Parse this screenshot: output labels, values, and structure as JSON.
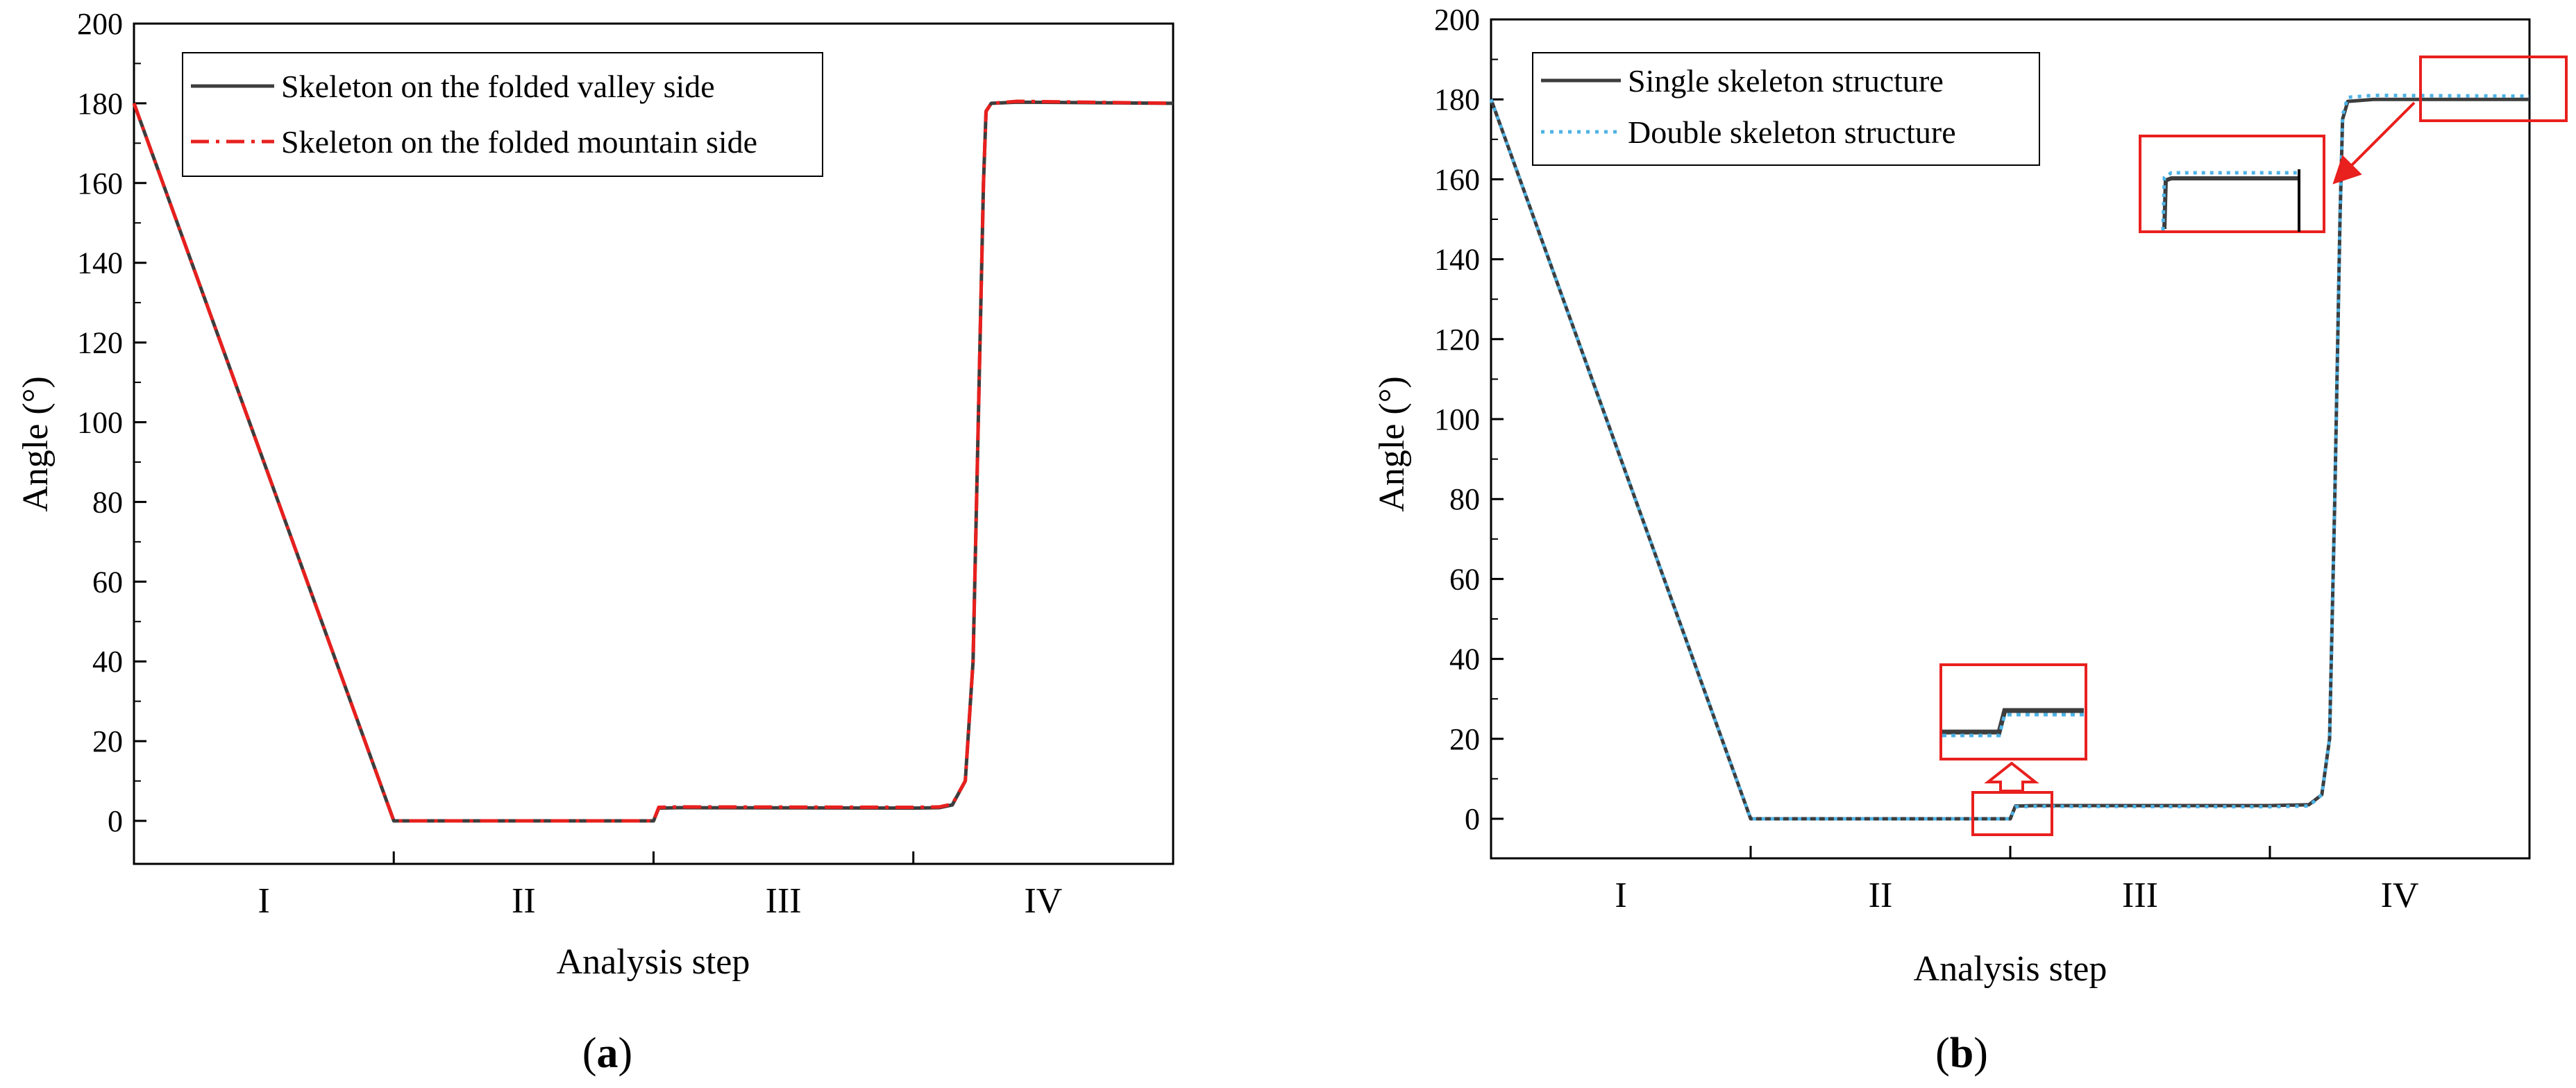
{
  "chart_data": [
    {
      "type": "line",
      "panel_label": "a",
      "xlabel": "Analysis step",
      "ylabel": "Angle (°)",
      "ylim": [
        -10,
        200
      ],
      "yticks": [
        0,
        20,
        40,
        60,
        80,
        100,
        120,
        140,
        160,
        180,
        200
      ],
      "xlim": [
        0,
        4
      ],
      "stage_boundaries": [
        1,
        2,
        3
      ],
      "stage_labels": [
        {
          "x": 0.5,
          "label": "I"
        },
        {
          "x": 1.5,
          "label": "II"
        },
        {
          "x": 2.5,
          "label": "III"
        },
        {
          "x": 3.5,
          "label": "IV"
        }
      ],
      "grid": false,
      "legend_position": "top-left",
      "series": [
        {
          "name": "Skeleton on the folded valley side",
          "color": "#3d3d3d",
          "style": "solid",
          "points": [
            [
              0,
              180
            ],
            [
              1,
              0
            ],
            [
              2,
              0
            ],
            [
              2.02,
              3.2
            ],
            [
              2.1,
              3.3
            ],
            [
              3,
              3.2
            ],
            [
              3.1,
              3.3
            ],
            [
              3.15,
              4
            ],
            [
              3.2,
              10
            ],
            [
              3.23,
              40
            ],
            [
              3.25,
              100
            ],
            [
              3.27,
              160
            ],
            [
              3.28,
              178
            ],
            [
              3.3,
              180
            ],
            [
              3.4,
              180.3
            ],
            [
              4,
              180
            ]
          ]
        },
        {
          "name": "Skeleton on the folded mountain side",
          "color": "#e8201e",
          "style": "dash-dot",
          "points": [
            [
              0,
              180
            ],
            [
              1,
              0
            ],
            [
              2,
              0
            ],
            [
              2.02,
              3.4
            ],
            [
              2.1,
              3.5
            ],
            [
              3,
              3.4
            ],
            [
              3.1,
              3.5
            ],
            [
              3.15,
              4.2
            ],
            [
              3.2,
              10
            ],
            [
              3.23,
              40
            ],
            [
              3.25,
              100
            ],
            [
              3.27,
              160
            ],
            [
              3.28,
              178
            ],
            [
              3.3,
              180
            ],
            [
              3.4,
              180.5
            ],
            [
              4,
              180
            ]
          ]
        }
      ]
    },
    {
      "type": "line",
      "panel_label": "b",
      "xlabel": "Analysis step",
      "ylabel": "Angle (°)",
      "ylim": [
        -10,
        200
      ],
      "yticks": [
        0,
        20,
        40,
        60,
        80,
        100,
        120,
        140,
        160,
        180,
        200
      ],
      "xlim": [
        0,
        4
      ],
      "stage_boundaries": [
        1,
        2,
        3
      ],
      "stage_labels": [
        {
          "x": 0.5,
          "label": "I"
        },
        {
          "x": 1.5,
          "label": "II"
        },
        {
          "x": 2.5,
          "label": "III"
        },
        {
          "x": 3.5,
          "label": "IV"
        }
      ],
      "grid": false,
      "legend_position": "top-left",
      "series": [
        {
          "name": "Single skeleton structure",
          "color": "#3d3d3d",
          "style": "solid",
          "points": [
            [
              0,
              180
            ],
            [
              1,
              0
            ],
            [
              2,
              0
            ],
            [
              2.02,
              3.2
            ],
            [
              2.1,
              3.3
            ],
            [
              3,
              3.3
            ],
            [
              3.15,
              3.5
            ],
            [
              3.2,
              6
            ],
            [
              3.23,
              20
            ],
            [
              3.25,
              80
            ],
            [
              3.27,
              150
            ],
            [
              3.28,
              175
            ],
            [
              3.3,
              179.5
            ],
            [
              3.4,
              180
            ],
            [
              4,
              180
            ]
          ]
        },
        {
          "name": "Double skeleton structure",
          "color": "#4db3e6",
          "style": "dotted",
          "points": [
            [
              0,
              180
            ],
            [
              1,
              0
            ],
            [
              2,
              0
            ],
            [
              2.02,
              3.0
            ],
            [
              2.1,
              3.1
            ],
            [
              3,
              3.0
            ],
            [
              3.15,
              3.2
            ],
            [
              3.2,
              6
            ],
            [
              3.23,
              20
            ],
            [
              3.25,
              80
            ],
            [
              3.27,
              150
            ],
            [
              3.28,
              176
            ],
            [
              3.3,
              180.5
            ],
            [
              3.4,
              181
            ],
            [
              4,
              180.8
            ]
          ]
        }
      ]
    }
  ]
}
